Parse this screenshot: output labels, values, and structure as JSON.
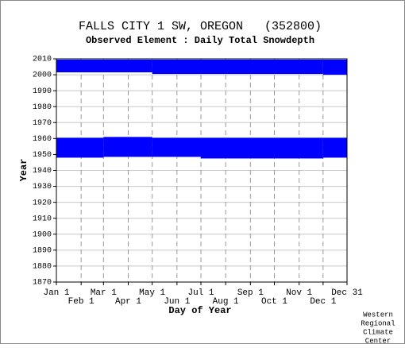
{
  "chart_data": {
    "type": "coverage",
    "title": "FALLS CITY 1 SW, OREGON   (352800)",
    "subtitle": "Observed Element : Daily Total Snowdepth",
    "x_label": "Day of Year",
    "y_label": "Year",
    "credit": [
      "Western",
      "Regional",
      "Climate",
      "Center"
    ],
    "color": "#0000ff",
    "xlim": [
      1,
      365
    ],
    "ylim": [
      1870,
      2010
    ],
    "xticks": [
      {
        "value": 1,
        "label": "Jan 1"
      },
      {
        "value": 32,
        "label": "Feb 1"
      },
      {
        "value": 60,
        "label": "Mar 1"
      },
      {
        "value": 91,
        "label": "Apr 1"
      },
      {
        "value": 121,
        "label": "May 1"
      },
      {
        "value": 152,
        "label": "Jun 1"
      },
      {
        "value": 182,
        "label": "Jul 1"
      },
      {
        "value": 213,
        "label": "Aug 1"
      },
      {
        "value": 244,
        "label": "Sep 1"
      },
      {
        "value": 274,
        "label": "Oct 1"
      },
      {
        "value": 305,
        "label": "Nov 1"
      },
      {
        "value": 335,
        "label": "Dec 1"
      },
      {
        "value": 365,
        "label": "Dec 31"
      }
    ],
    "yticks": [
      1870,
      1880,
      1890,
      1900,
      1910,
      1920,
      1930,
      1940,
      1950,
      1960,
      1970,
      1980,
      1990,
      2000,
      2010
    ],
    "grid": true,
    "periods": [
      {
        "days": [
          1,
          121
        ],
        "years": [
          2001.5,
          2009.5
        ]
      },
      {
        "days": [
          121,
          335
        ],
        "years": [
          2000.5,
          2009.5
        ]
      },
      {
        "days": [
          335,
          365
        ],
        "years": [
          2000,
          2009.5
        ]
      },
      {
        "days": [
          1,
          60
        ],
        "years": [
          1948,
          1960.5
        ]
      },
      {
        "days": [
          60,
          121
        ],
        "years": [
          1948.5,
          1961
        ]
      },
      {
        "days": [
          121,
          182
        ],
        "years": [
          1948.5,
          1960.5
        ]
      },
      {
        "days": [
          182,
          335
        ],
        "years": [
          1947.5,
          1960.5
        ]
      },
      {
        "days": [
          335,
          365
        ],
        "years": [
          1948,
          1960.5
        ]
      }
    ]
  }
}
